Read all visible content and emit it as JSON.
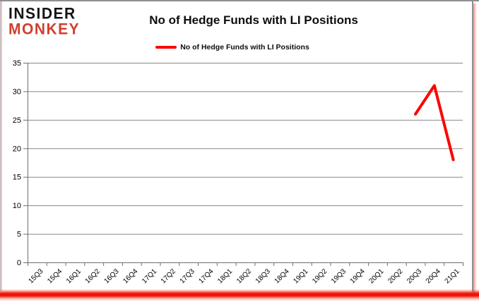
{
  "logo": {
    "line1": "INSIDER",
    "line2": "MONKEY"
  },
  "header": {
    "title": "No of Hedge Funds with LI Positions"
  },
  "legend": {
    "label": "No of Hedge Funds with LI Positions"
  },
  "colors": {
    "series_red": "#ff0000",
    "logo_red": "#d23f2e",
    "gridline": "#878787",
    "axis": "#6e6e6e",
    "bottom_bar_red": "#ee1408",
    "text": "#000000"
  },
  "chart_data": {
    "type": "line",
    "title": "No of Hedge Funds with LI Positions",
    "categories": [
      "15Q3",
      "15Q4",
      "16Q1",
      "16Q2",
      "16Q3",
      "16Q4",
      "17Q1",
      "17Q2",
      "17Q3",
      "17Q4",
      "18Q1",
      "18Q2",
      "18Q3",
      "18Q4",
      "19Q1",
      "19Q2",
      "19Q3",
      "19Q4",
      "20Q1",
      "20Q2",
      "20Q3",
      "20Q4",
      "21Q1"
    ],
    "series": [
      {
        "name": "No of Hedge Funds with LI Positions",
        "color": "#ff0000",
        "values": [
          null,
          null,
          null,
          null,
          null,
          null,
          null,
          null,
          null,
          null,
          null,
          null,
          null,
          null,
          null,
          null,
          null,
          null,
          null,
          null,
          26,
          31,
          18
        ]
      }
    ],
    "visible_points": [
      {
        "category": "20Q3",
        "value": 26
      },
      {
        "category": "20Q4",
        "value": 31
      },
      {
        "category": "21Q1",
        "value": 18
      }
    ],
    "xlabel": "",
    "ylabel": "",
    "ylim": [
      0,
      35
    ],
    "yticks": [
      0,
      5,
      10,
      15,
      20,
      25,
      30,
      35
    ],
    "grid": "horizontal",
    "legend_position": "top-center"
  }
}
